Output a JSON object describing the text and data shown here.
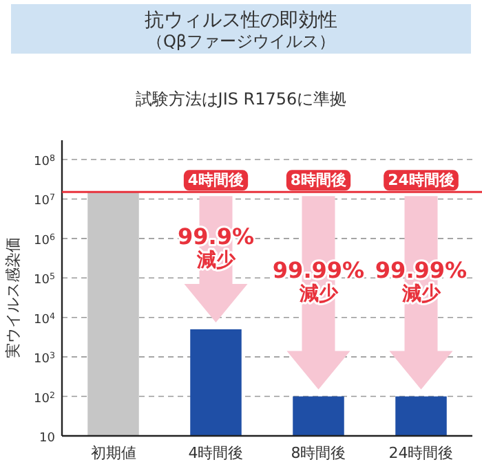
{
  "chart_data": {
    "type": "bar",
    "title": "抗ウィルス性の即効性",
    "subtitle": "（Qβファージウイルス）",
    "ylabel": "実ウイルス感染価",
    "categories": [
      "初期値",
      "4時間後",
      "8時間後",
      "24時間後"
    ],
    "values": [
      15000000,
      5000,
      100,
      100
    ],
    "colors": [
      "#c6c6c6",
      "#1f4fa6",
      "#1f4fa6",
      "#1f4fa6"
    ],
    "log": true,
    "ylim": [
      10,
      100000000
    ],
    "yticks": [
      10,
      {
        "value": 100,
        "label": "10$^{2}$"
      },
      {
        "value": 1000,
        "label": "10$^{3}$"
      },
      {
        "value": 10000,
        "label": "10$^{4}$"
      },
      {
        "value": 100000,
        "label": "10$^{5}$"
      },
      {
        "value": 1000000,
        "label": "10$^{6}$"
      },
      {
        "value": 10000000,
        "label": "10$^{7}$"
      },
      {
        "value": 100000000,
        "label": "10$^{8}$"
      }
    ],
    "grid": "y",
    "ref_lines": [
      {
        "axis": "y",
        "value": 15000000,
        "color": "#e8323c"
      }
    ],
    "annotations": [
      "試験方法はJIS R1756に準拠",
      "4時間後",
      "8時間後",
      "24時間後",
      "99.9%\n減少",
      "99.99%\n減少",
      "99.99%\n減少"
    ]
  }
}
